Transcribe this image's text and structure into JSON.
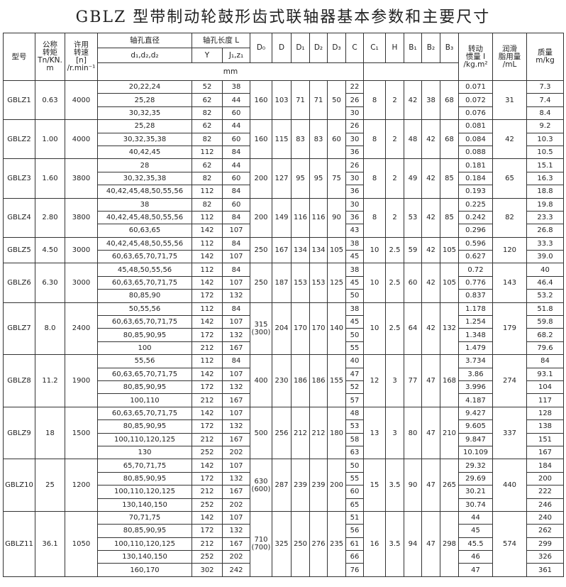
{
  "title": "GBLZ 型带制动轮鼓形齿式联轴器基本参数和主要尺寸",
  "header": {
    "model": "型号",
    "torque": "公称\n转矩\nTn/KN.\nm",
    "speed": "许用\n转速\n[n]\n/r.min⁻¹",
    "bore_diameter": "轴孔直径",
    "bore_diameter_sub": "d₁,d₂,d₂",
    "bore_length": "轴孔长度 L",
    "bore_length_y": "Y",
    "bore_length_j": "J₁,z₁",
    "D0": "D₀",
    "D": "D",
    "D1": "D₁",
    "D2": "D₂",
    "D3": "D₃",
    "C": "C",
    "C1": "C₁",
    "H": "H",
    "B1": "B₁",
    "B2": "B₂",
    "B3": "B₃",
    "inertia": "转动\n惯量 I\n/kg.m²",
    "lube": "润滑\n脂用量\n/mL",
    "mass": "质量\nm/kg",
    "unit": "mm"
  },
  "groups": [
    {
      "model": "GBLZ1",
      "torque": "0.63",
      "speed": "4000",
      "D0": "160",
      "D": "103",
      "D1": "71",
      "D2": "71",
      "D3": "50",
      "C1": "8",
      "H": "2",
      "B1": "42",
      "B2": "38",
      "B3": "68",
      "lube": "31",
      "rows": [
        {
          "d": "20,22,24",
          "Y": "52",
          "J": "38",
          "C": "22",
          "I": "0.071",
          "m": "7.3"
        },
        {
          "d": "25,28",
          "Y": "62",
          "J": "44",
          "C": "26",
          "I": "0.072",
          "m": "7.4"
        },
        {
          "d": "30,32,35",
          "Y": "82",
          "J": "60",
          "C": "30",
          "I": "0.076",
          "m": "8.4"
        }
      ]
    },
    {
      "model": "GBLZ2",
      "torque": "1.00",
      "speed": "4000",
      "D0": "160",
      "D": "115",
      "D1": "83",
      "D2": "83",
      "D3": "60",
      "C1": "8",
      "H": "2",
      "B1": "48",
      "B2": "42",
      "B3": "68",
      "lube": "42",
      "rows": [
        {
          "d": "25,28",
          "Y": "62",
          "J": "44",
          "C": "26",
          "I": "0.081",
          "m": "9.2"
        },
        {
          "d": "30,32,35,38",
          "Y": "82",
          "J": "60",
          "C": "30",
          "I": "0.084",
          "m": "10.3"
        },
        {
          "d": "40,42,45",
          "Y": "112",
          "J": "84",
          "C": "36",
          "I": "0.088",
          "m": "10.5"
        }
      ]
    },
    {
      "model": "GBLZ3",
      "torque": "1.60",
      "speed": "3800",
      "D0": "200",
      "D": "127",
      "D1": "95",
      "D2": "95",
      "D3": "75",
      "C1": "8",
      "H": "2",
      "B1": "49",
      "B2": "42",
      "B3": "85",
      "lube": "65",
      "rows": [
        {
          "d": "28",
          "Y": "62",
          "J": "44",
          "C": "26",
          "I": "0.181",
          "m": "15.1"
        },
        {
          "d": "30,32,35,38",
          "Y": "82",
          "J": "60",
          "C": "30",
          "I": "0.184",
          "m": "16.3"
        },
        {
          "d": "40,42,45,48,50,55,56",
          "Y": "112",
          "J": "84",
          "C": "36",
          "I": "0.193",
          "m": "18.8"
        }
      ]
    },
    {
      "model": "GBLZ4",
      "torque": "2.80",
      "speed": "3800",
      "D0": "200",
      "D": "149",
      "D1": "116",
      "D2": "116",
      "D3": "90",
      "C1": "8",
      "H": "2",
      "B1": "53",
      "B2": "42",
      "B3": "85",
      "lube": "82",
      "rows": [
        {
          "d": "38",
          "Y": "82",
          "J": "60",
          "C": "30",
          "I": "0.225",
          "m": "19.8"
        },
        {
          "d": "40,42,45,48,50,55,56",
          "Y": "112",
          "J": "84",
          "C": "36",
          "I": "0.242",
          "m": "23.3"
        },
        {
          "d": "60,63,65",
          "Y": "142",
          "J": "107",
          "C": "43",
          "I": "0.296",
          "m": "26.8"
        }
      ]
    },
    {
      "model": "GBLZ5",
      "torque": "4.50",
      "speed": "3000",
      "D0": "250",
      "D": "167",
      "D1": "134",
      "D2": "134",
      "D3": "105",
      "C1": "10",
      "H": "2.5",
      "B1": "59",
      "B2": "42",
      "B3": "105",
      "lube": "120",
      "rows": [
        {
          "d": "40,42,45,48,50,55,56",
          "Y": "112",
          "J": "84",
          "C": "38",
          "I": "0.596",
          "m": "33.3"
        },
        {
          "d": "60,63,65,70,71,75",
          "Y": "142",
          "J": "107",
          "C": "45",
          "I": "0.627",
          "m": "39.0"
        }
      ]
    },
    {
      "model": "GBLZ6",
      "torque": "6.30",
      "speed": "3000",
      "D0": "250",
      "D": "187",
      "D1": "153",
      "D2": "153",
      "D3": "125",
      "C1": "10",
      "H": "2.5",
      "B1": "60",
      "B2": "42",
      "B3": "105",
      "lube": "143",
      "rows": [
        {
          "d": "45,48,50,55,56",
          "Y": "112",
          "J": "84",
          "C": "38",
          "I": "0.72",
          "m": "40"
        },
        {
          "d": "60,63,65,70,71,75",
          "Y": "142",
          "J": "107",
          "C": "45",
          "I": "0.776",
          "m": "46.4"
        },
        {
          "d": "80,85,90",
          "Y": "172",
          "J": "132",
          "C": "50",
          "I": "0.837",
          "m": "53.2"
        }
      ]
    },
    {
      "model": "GBLZ7",
      "torque": "8.0",
      "speed": "2400",
      "D0": "315\n(300)",
      "D": "204",
      "D1": "170",
      "D2": "170",
      "D3": "140",
      "C1": "10",
      "H": "2.5",
      "B1": "64",
      "B2": "42",
      "B3": "132",
      "lube": "179",
      "rows": [
        {
          "d": "50,55,56",
          "Y": "112",
          "J": "84",
          "C": "38",
          "I": "1.178",
          "m": "51.8"
        },
        {
          "d": "60,63,65,70,71,75",
          "Y": "142",
          "J": "107",
          "C": "45",
          "I": "1.254",
          "m": "59.8"
        },
        {
          "d": "80,85,90,95",
          "Y": "172",
          "J": "132",
          "C": "50",
          "I": "1.348",
          "m": "68.2"
        },
        {
          "d": "100",
          "Y": "212",
          "J": "167",
          "C": "55",
          "I": "1.479",
          "m": "79.6"
        }
      ]
    },
    {
      "model": "GBLZ8",
      "torque": "11.2",
      "speed": "1900",
      "D0": "400",
      "D": "230",
      "D1": "186",
      "D2": "186",
      "D3": "155",
      "C1": "12",
      "H": "3",
      "B1": "77",
      "B2": "47",
      "B3": "168",
      "lube": "274",
      "rows": [
        {
          "d": "55,56",
          "Y": "112",
          "J": "84",
          "C": "40",
          "I": "3.734",
          "m": "84"
        },
        {
          "d": "60,63,65,70,71,75",
          "Y": "142",
          "J": "107",
          "C": "47",
          "I": "3.86",
          "m": "93.1"
        },
        {
          "d": "80,85,90,95",
          "Y": "172",
          "J": "132",
          "C": "52",
          "I": "3.996",
          "m": "104"
        },
        {
          "d": "100,110",
          "Y": "212",
          "J": "167",
          "C": "57",
          "I": "4.187",
          "m": "117"
        }
      ]
    },
    {
      "model": "GBLZ9",
      "torque": "18",
      "speed": "1500",
      "D0": "500",
      "D": "256",
      "D1": "212",
      "D2": "212",
      "D3": "180",
      "C1": "13",
      "H": "3",
      "B1": "80",
      "B2": "47",
      "B3": "210",
      "lube": "337",
      "rows": [
        {
          "d": "60,63,65,70,71,75",
          "Y": "142",
          "J": "107",
          "C": "48",
          "I": "9.427",
          "m": "128"
        },
        {
          "d": "80,85,90,95",
          "Y": "172",
          "J": "132",
          "C": "53",
          "I": "9.605",
          "m": "138"
        },
        {
          "d": "100,110,120,125",
          "Y": "212",
          "J": "167",
          "C": "58",
          "I": "9.847",
          "m": "151"
        },
        {
          "d": "130",
          "Y": "252",
          "J": "202",
          "C": "63",
          "I": "10.109",
          "m": "167"
        }
      ]
    },
    {
      "model": "GBLZ10",
      "torque": "25",
      "speed": "1200",
      "D0": "630\n(600)",
      "D": "287",
      "D1": "239",
      "D2": "239",
      "D3": "200",
      "C1": "15",
      "H": "3.5",
      "B1": "90",
      "B2": "47",
      "B3": "265",
      "lube": "440",
      "rows": [
        {
          "d": "65,70,71,75",
          "Y": "142",
          "J": "107",
          "C": "50",
          "I": "29.32",
          "m": "184"
        },
        {
          "d": "80,85,90,95",
          "Y": "172",
          "J": "132",
          "C": "55",
          "I": "29.69",
          "m": "200"
        },
        {
          "d": "100,110,120,125",
          "Y": "212",
          "J": "167",
          "C": "60",
          "I": "30.21",
          "m": "222"
        },
        {
          "d": "130,140,150",
          "Y": "252",
          "J": "202",
          "C": "65",
          "I": "30.74",
          "m": "246"
        }
      ]
    },
    {
      "model": "GBLZ11",
      "torque": "36.1",
      "speed": "1050",
      "D0": "710\n(700)",
      "D": "325",
      "D1": "250",
      "D2": "276",
      "D3": "235",
      "C1": "16",
      "H": "3.5",
      "B1": "94",
      "B2": "47",
      "B3": "298",
      "lube": "574",
      "rows": [
        {
          "d": "70,71,75",
          "Y": "142",
          "J": "107",
          "C": "51",
          "I": "44",
          "m": "240"
        },
        {
          "d": "80,85,90,95",
          "Y": "172",
          "J": "132",
          "C": "56",
          "I": "45",
          "m": "262"
        },
        {
          "d": "100,110,120,125",
          "Y": "212",
          "J": "167",
          "C": "61",
          "I": "45.5",
          "m": "299"
        },
        {
          "d": "130,140,150",
          "Y": "252",
          "J": "202",
          "C": "66",
          "I": "46",
          "m": "326"
        },
        {
          "d": "160,170",
          "Y": "302",
          "J": "242",
          "C": "76",
          "I": "47",
          "m": "361"
        }
      ]
    }
  ]
}
